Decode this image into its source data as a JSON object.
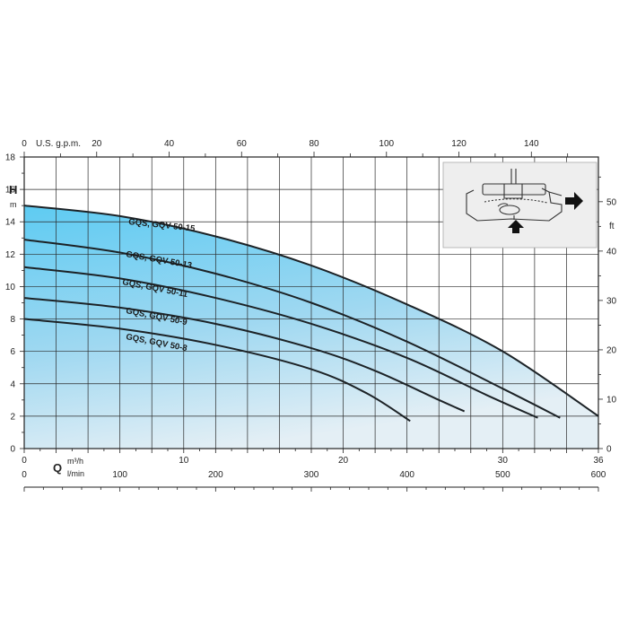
{
  "chart_data": {
    "type": "line",
    "y_left": {
      "label": "H",
      "unit": "m",
      "ticks": [
        "0",
        "2",
        "4",
        "6",
        "8",
        "10",
        "12",
        "14",
        "16",
        "18"
      ],
      "range": [
        0,
        18
      ]
    },
    "y_right": {
      "unit": "ft",
      "ticks": [
        "0",
        "10",
        "20",
        "30",
        "40",
        "50"
      ]
    },
    "x_top": {
      "label": "U.S. g.p.m.",
      "ticks": [
        "0",
        "20",
        "40",
        "60",
        "80",
        "100",
        "120",
        "140"
      ]
    },
    "x_bottom_m3h": {
      "unit": "m³/h",
      "ticks": [
        "0",
        "10",
        "20",
        "30",
        "36"
      ],
      "range": [
        0,
        36
      ]
    },
    "x_bottom_lmin": {
      "label": "Q",
      "unit": "l/min",
      "ticks": [
        "0",
        "100",
        "200",
        "300",
        "400",
        "500",
        "600"
      ]
    },
    "curve_x_unit": "m3/h",
    "series": [
      {
        "name": "GQS, GQV 50-15",
        "points": [
          [
            0,
            15.0
          ],
          [
            6,
            14.35
          ],
          [
            12,
            13.1
          ],
          [
            18,
            11.3
          ],
          [
            24,
            8.9
          ],
          [
            30,
            6.0
          ],
          [
            36,
            2.0
          ]
        ]
      },
      {
        "name": "GQS, GQV 50-13",
        "points": [
          [
            0,
            12.9
          ],
          [
            6,
            12.1
          ],
          [
            12,
            10.8
          ],
          [
            18,
            9.0
          ],
          [
            24,
            6.6
          ],
          [
            30,
            3.7
          ],
          [
            33.6,
            1.9
          ]
        ]
      },
      {
        "name": "GQS, GQV 50-11",
        "points": [
          [
            0,
            11.2
          ],
          [
            6,
            10.5
          ],
          [
            12,
            9.3
          ],
          [
            18,
            7.7
          ],
          [
            24,
            5.6
          ],
          [
            29,
            3.3
          ],
          [
            32.2,
            1.9
          ]
        ]
      },
      {
        "name": "GQS, GQV 50-9",
        "points": [
          [
            0,
            9.3
          ],
          [
            6,
            8.7
          ],
          [
            12,
            7.7
          ],
          [
            18,
            6.2
          ],
          [
            22,
            4.8
          ],
          [
            26,
            3.0
          ],
          [
            27.6,
            2.3
          ]
        ]
      },
      {
        "name": "GQS, GQV 50-8",
        "points": [
          [
            0,
            8.0
          ],
          [
            6,
            7.4
          ],
          [
            12,
            6.4
          ],
          [
            18,
            4.9
          ],
          [
            21.5,
            3.4
          ],
          [
            24.2,
            1.7
          ]
        ]
      }
    ],
    "grid": true,
    "colors": {
      "fill_top": "#5ecbf2",
      "fill_bottom": "#e2f0f7",
      "curve": "#1c2226",
      "grid": "#222222"
    }
  },
  "inset": {
    "description_icon": "pump-cross-section-icon"
  }
}
